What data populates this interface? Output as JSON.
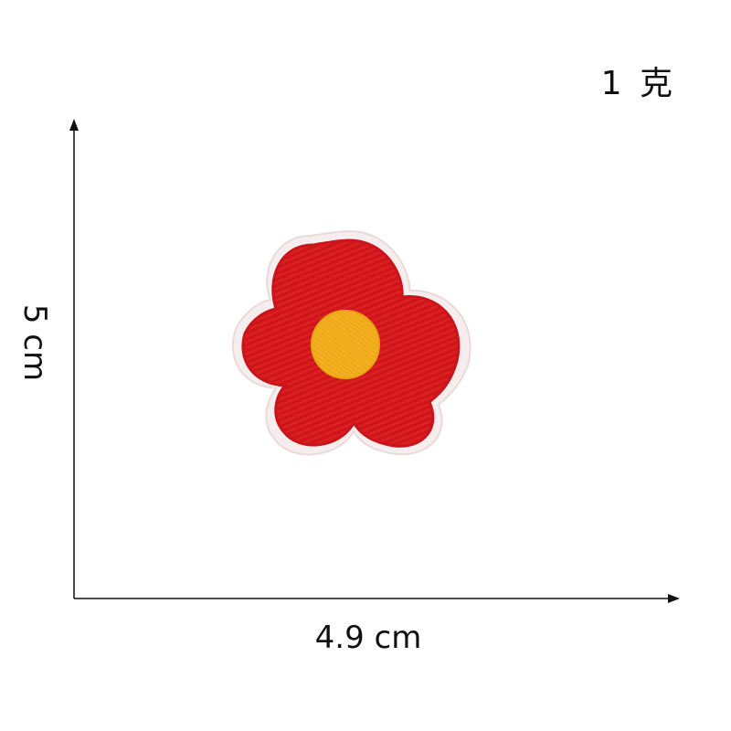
{
  "weight": {
    "label": "1 克"
  },
  "dimensions": {
    "height_label": "5 cm",
    "width_label": "4.9 cm"
  },
  "patch": {
    "subject": "flower-embroidered-patch",
    "petal_color": "#d7191c",
    "center_color": "#f2b01e",
    "border_color": "#f3e6e6"
  },
  "axis_color": "#111111"
}
